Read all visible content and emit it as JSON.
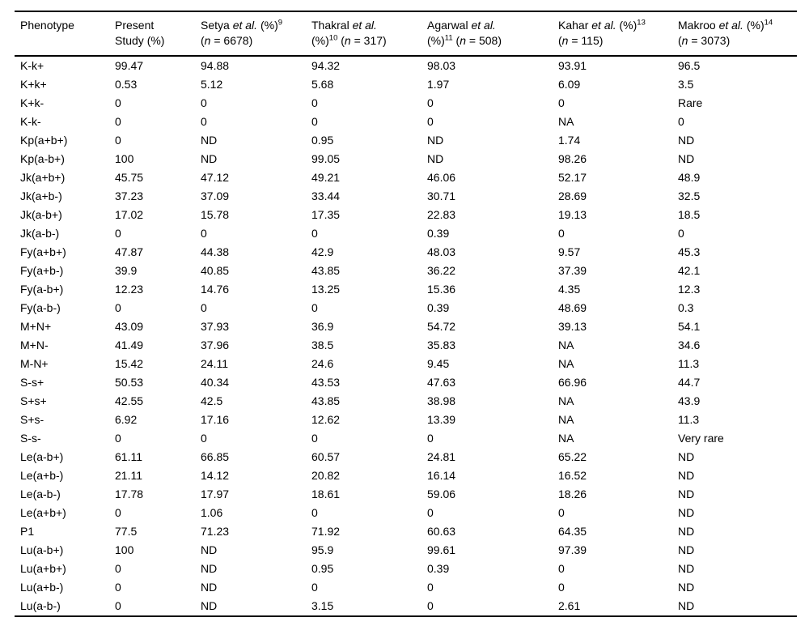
{
  "colors": {
    "text": "#000000",
    "background": "#ffffff",
    "rule": "#000000"
  },
  "table": {
    "headers": [
      {
        "lines": [
          [
            {
              "t": "Phenotype"
            }
          ]
        ]
      },
      {
        "lines": [
          [
            {
              "t": "Present"
            }
          ],
          [
            {
              "t": "Study (%)"
            }
          ]
        ]
      },
      {
        "lines": [
          [
            {
              "t": "Setya "
            },
            {
              "t": "et al.",
              "i": true
            },
            {
              "t": " (%)"
            },
            {
              "t": "9",
              "sup": true
            }
          ],
          [
            {
              "t": "("
            },
            {
              "t": "n",
              "i": true
            },
            {
              "t": " = 6678)"
            }
          ]
        ]
      },
      {
        "lines": [
          [
            {
              "t": "Thakral "
            },
            {
              "t": "et al.",
              "i": true
            }
          ],
          [
            {
              "t": "(%)"
            },
            {
              "t": "10",
              "sup": true
            },
            {
              "t": " ("
            },
            {
              "t": "n",
              "i": true
            },
            {
              "t": " = 317)"
            }
          ]
        ]
      },
      {
        "lines": [
          [
            {
              "t": "Agarwal "
            },
            {
              "t": "et al.",
              "i": true
            }
          ],
          [
            {
              "t": "(%)"
            },
            {
              "t": "11",
              "sup": true
            },
            {
              "t": " ("
            },
            {
              "t": "n",
              "i": true
            },
            {
              "t": " = 508)"
            }
          ]
        ]
      },
      {
        "lines": [
          [
            {
              "t": "Kahar "
            },
            {
              "t": "et al.",
              "i": true
            },
            {
              "t": " (%)"
            },
            {
              "t": "13",
              "sup": true
            }
          ],
          [
            {
              "t": "("
            },
            {
              "t": "n",
              "i": true
            },
            {
              "t": " = 115)"
            }
          ]
        ]
      },
      {
        "lines": [
          [
            {
              "t": "Makroo "
            },
            {
              "t": "et al.",
              "i": true
            },
            {
              "t": " (%)"
            },
            {
              "t": "14",
              "sup": true
            }
          ],
          [
            {
              "t": "("
            },
            {
              "t": "n",
              "i": true
            },
            {
              "t": " = 3073)"
            }
          ]
        ]
      }
    ],
    "rows": [
      [
        "K-k+",
        "99.47",
        "94.88",
        "94.32",
        "98.03",
        "93.91",
        "96.5"
      ],
      [
        "K+k+",
        "0.53",
        "5.12",
        "5.68",
        "1.97",
        "6.09",
        "3.5"
      ],
      [
        "K+k-",
        "0",
        "0",
        "0",
        "0",
        "0",
        "Rare"
      ],
      [
        "K-k-",
        "0",
        "0",
        "0",
        "0",
        "NA",
        "0"
      ],
      [
        "Kp(a+b+)",
        "0",
        "ND",
        "0.95",
        "ND",
        "1.74",
        "ND"
      ],
      [
        "Kp(a-b+)",
        "100",
        "ND",
        "99.05",
        "ND",
        "98.26",
        "ND"
      ],
      [
        "Jk(a+b+)",
        "45.75",
        "47.12",
        "49.21",
        "46.06",
        "52.17",
        "48.9"
      ],
      [
        "Jk(a+b-)",
        "37.23",
        "37.09",
        "33.44",
        "30.71",
        "28.69",
        "32.5"
      ],
      [
        "Jk(a-b+)",
        "17.02",
        "15.78",
        "17.35",
        "22.83",
        "19.13",
        "18.5"
      ],
      [
        "Jk(a-b-)",
        "0",
        "0",
        "0",
        "0.39",
        "0",
        "0"
      ],
      [
        "Fy(a+b+)",
        "47.87",
        "44.38",
        "42.9",
        "48.03",
        "9.57",
        "45.3"
      ],
      [
        "Fy(a+b-)",
        "39.9",
        "40.85",
        "43.85",
        "36.22",
        "37.39",
        "42.1"
      ],
      [
        "Fy(a-b+)",
        "12.23",
        "14.76",
        "13.25",
        "15.36",
        "4.35",
        "12.3"
      ],
      [
        "Fy(a-b-)",
        "0",
        "0",
        "0",
        "0.39",
        "48.69",
        "0.3"
      ],
      [
        "M+N+",
        "43.09",
        "37.93",
        "36.9",
        "54.72",
        "39.13",
        "54.1"
      ],
      [
        "M+N-",
        "41.49",
        "37.96",
        "38.5",
        "35.83",
        "NA",
        "34.6"
      ],
      [
        "M-N+",
        "15.42",
        "24.11",
        "24.6",
        "9.45",
        "NA",
        "11.3"
      ],
      [
        "S-s+",
        "50.53",
        "40.34",
        "43.53",
        "47.63",
        "66.96",
        "44.7"
      ],
      [
        "S+s+",
        "42.55",
        "42.5",
        "43.85",
        "38.98",
        "NA",
        "43.9"
      ],
      [
        "S+s-",
        "6.92",
        "17.16",
        "12.62",
        "13.39",
        "NA",
        "11.3"
      ],
      [
        "S-s-",
        "0",
        "0",
        "0",
        "0",
        "NA",
        "Very rare"
      ],
      [
        "Le(a-b+)",
        "61.11",
        "66.85",
        "60.57",
        "24.81",
        "65.22",
        "ND"
      ],
      [
        "Le(a+b-)",
        "21.11",
        "14.12",
        "20.82",
        "16.14",
        "16.52",
        "ND"
      ],
      [
        "Le(a-b-)",
        "17.78",
        "17.97",
        "18.61",
        "59.06",
        "18.26",
        "ND"
      ],
      [
        "Le(a+b+)",
        "0",
        "1.06",
        "0",
        "0",
        "0",
        "ND"
      ],
      [
        "P1",
        "77.5",
        "71.23",
        "71.92",
        "60.63",
        "64.35",
        "ND"
      ],
      [
        "Lu(a-b+)",
        "100",
        "ND",
        "95.9",
        "99.61",
        "97.39",
        "ND"
      ],
      [
        "Lu(a+b+)",
        "0",
        "ND",
        "0.95",
        "0.39",
        "0",
        "ND"
      ],
      [
        "Lu(a+b-)",
        "0",
        "ND",
        "0",
        "0",
        "0",
        "ND"
      ],
      [
        "Lu(a-b-)",
        "0",
        "ND",
        "3.15",
        "0",
        "2.61",
        "ND"
      ]
    ]
  }
}
